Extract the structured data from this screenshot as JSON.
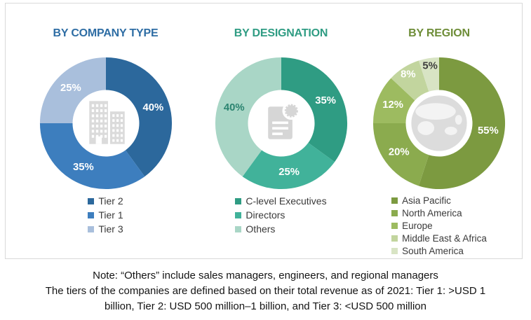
{
  "chart_data": [
    {
      "type": "pie",
      "subtype": "donut",
      "title": "BY COMPANY TYPE",
      "title_color": "#2E6DA4",
      "unit": "%",
      "categories": [
        "Tier 2",
        "Tier 1",
        "Tier 3"
      ],
      "values": [
        40,
        35,
        25
      ],
      "colors": [
        "#2C689C",
        "#3D7EBE",
        "#A9BFDC"
      ],
      "label_colors": [
        "#FFFFFF",
        "#FFFFFF",
        "#FFFFFF"
      ],
      "center_icon": "buildings-icon",
      "legend_position": "bottom",
      "start_angle_deg": 0,
      "direction": "clockwise"
    },
    {
      "type": "pie",
      "subtype": "donut",
      "title": "BY DESIGNATION",
      "title_color": "#2F9C83",
      "unit": "%",
      "categories": [
        "C-level Executives",
        "Directors",
        "Others"
      ],
      "values": [
        35,
        25,
        40
      ],
      "colors": [
        "#2F9C83",
        "#41B29A",
        "#A9D6C6"
      ],
      "label_colors": [
        "#FFFFFF",
        "#FFFFFF",
        "#2B8470"
      ],
      "center_icon": "report-icon",
      "legend_position": "bottom",
      "start_angle_deg": 0,
      "direction": "clockwise"
    },
    {
      "type": "pie",
      "subtype": "donut",
      "title": "BY REGION",
      "title_color": "#6E8D38",
      "unit": "%",
      "categories": [
        "Asia Pacific",
        "North America",
        "Europe",
        "Middle East & Africa",
        "South America"
      ],
      "values": [
        55,
        20,
        12,
        8,
        5
      ],
      "colors": [
        "#7C9A40",
        "#8BAB4E",
        "#9DBB60",
        "#C2D59E",
        "#D8E4C4"
      ],
      "label_colors": [
        "#FFFFFF",
        "#FFFFFF",
        "#FFFFFF",
        "#FFFFFF",
        "#3F3F3F"
      ],
      "center_icon": "globe-icon",
      "legend_position": "bottom",
      "start_angle_deg": 0,
      "direction": "clockwise"
    }
  ],
  "notes": {
    "line1": "Note: “Others” include sales managers, engineers, and regional managers",
    "line2": "The tiers of the companies are defined based on their total revenue as of 2021: Tier 1: >USD 1",
    "line3": "billion, Tier 2: USD 500 million–1 billion, and Tier 3: <USD 500 million"
  }
}
